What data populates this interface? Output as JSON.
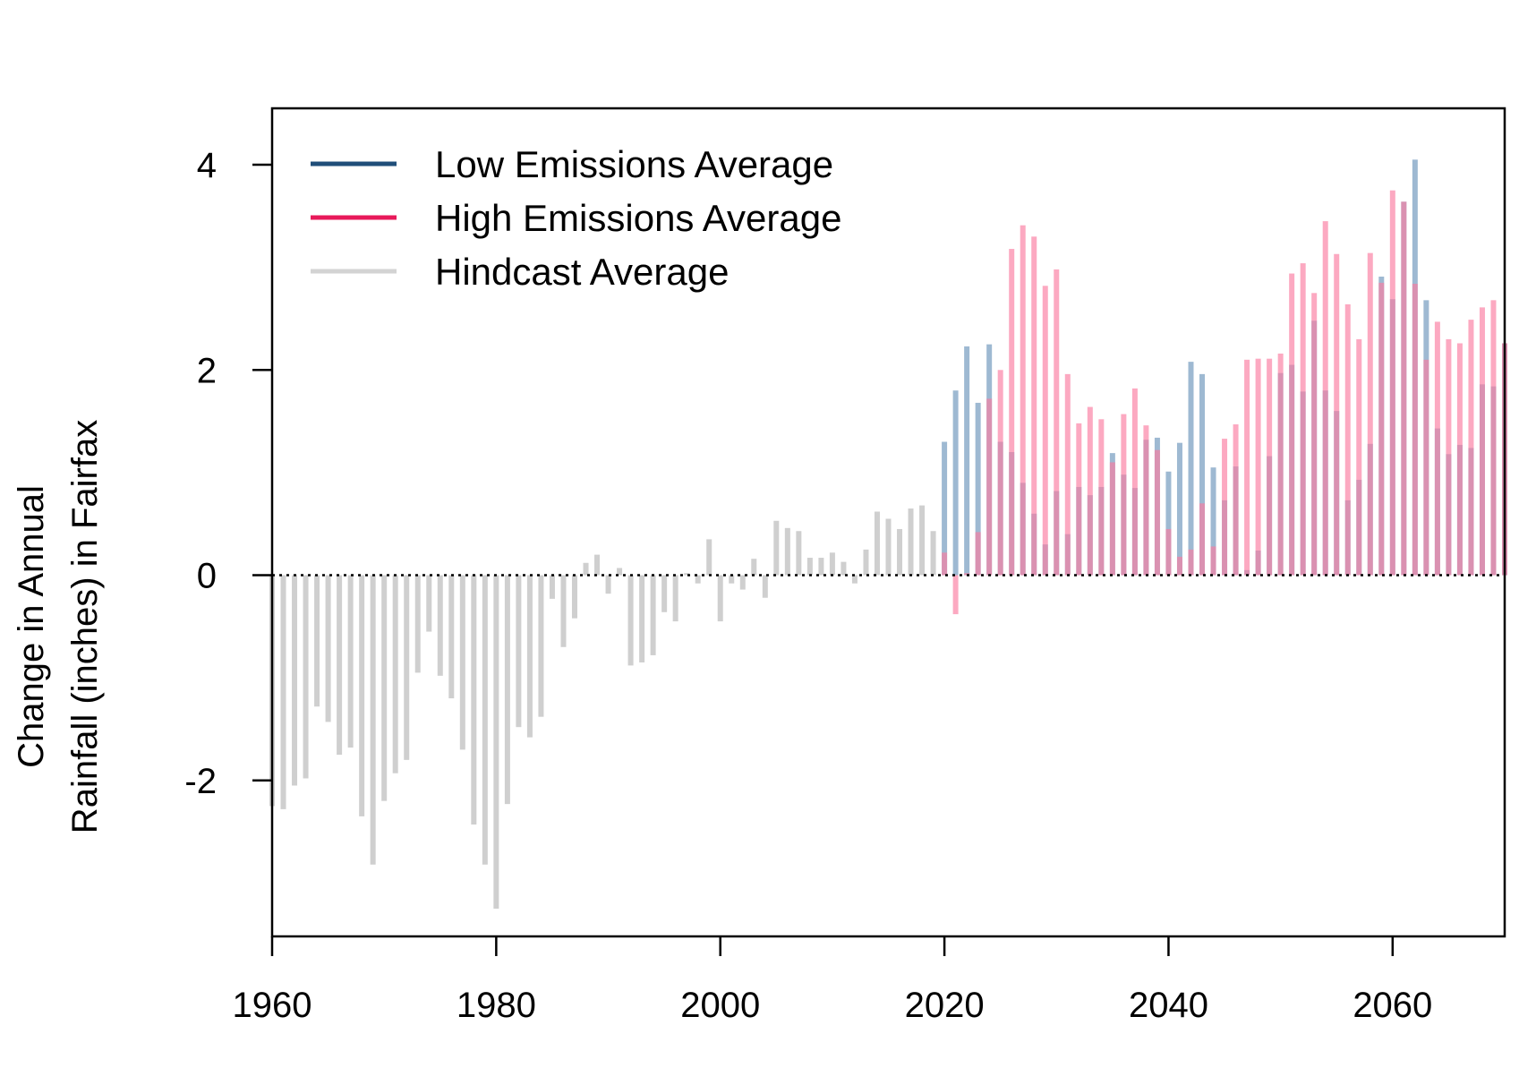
{
  "chart_data": {
    "type": "bar",
    "ylabel_lines": [
      "Change in Annual",
      "Rainfall (inches) in Fairfax"
    ],
    "xlim": [
      1960,
      2070
    ],
    "ylim": [
      -3.52,
      4.55
    ],
    "x_ticks": [
      1960,
      1980,
      2000,
      2020,
      2040,
      2060
    ],
    "y_ticks": [
      -2,
      0,
      2,
      4
    ],
    "reference_line": 0,
    "legend_position": "top-left",
    "series": [
      {
        "name": "Low Emissions Average",
        "color": "#1f4e79",
        "bar_color": "rgba(134,168,199,0.8)",
        "start_year": 2020,
        "values": [
          1.3,
          1.8,
          2.23,
          1.68,
          2.25,
          1.3,
          1.2,
          0.9,
          0.6,
          0.3,
          0.82,
          0.4,
          0.86,
          0.78,
          0.86,
          1.19,
          0.98,
          0.85,
          1.32,
          1.34,
          1.01,
          1.29,
          2.08,
          1.96,
          1.05,
          0.73,
          1.06,
          0.05,
          0.24,
          1.16,
          1.97,
          2.05,
          1.79,
          2.48,
          1.8,
          1.6,
          0.73,
          0.93,
          1.28,
          2.91,
          2.69,
          3.64,
          4.05,
          2.68,
          1.43,
          1.18,
          1.27,
          1.24,
          1.86,
          1.84,
          2.26
        ]
      },
      {
        "name": "High Emissions Average",
        "color": "#e8195a",
        "bar_color": "rgba(250,123,160,0.65)",
        "start_year": 2020,
        "values": [
          0.22,
          -0.38,
          0.02,
          0.42,
          1.72,
          2.0,
          3.18,
          3.41,
          3.3,
          2.82,
          2.98,
          1.96,
          1.48,
          1.64,
          1.52,
          1.1,
          1.57,
          1.82,
          1.46,
          1.22,
          0.45,
          0.18,
          0.25,
          0.7,
          0.28,
          1.33,
          1.47,
          2.1,
          2.11,
          2.11,
          2.16,
          2.94,
          3.04,
          2.75,
          3.45,
          3.13,
          2.64,
          2.3,
          3.14,
          2.85,
          3.75,
          3.64,
          2.84,
          2.1,
          2.47,
          2.3,
          2.26,
          2.49,
          2.61,
          2.68,
          2.26
        ]
      },
      {
        "name": "Hindcast Average",
        "color": "#d3d3d3",
        "bar_color": "#cfcfcf",
        "start_year": 1960,
        "values": [
          -2.25,
          -2.28,
          -2.05,
          -1.98,
          -1.28,
          -1.43,
          -1.75,
          -1.68,
          -2.35,
          -2.82,
          -2.2,
          -1.93,
          -1.8,
          -0.95,
          -0.55,
          -0.98,
          -1.2,
          -1.7,
          -2.43,
          -2.82,
          -3.25,
          -2.23,
          -1.48,
          -1.58,
          -1.38,
          -0.23,
          -0.7,
          -0.42,
          0.12,
          0.2,
          -0.18,
          0.07,
          -0.88,
          -0.85,
          -0.78,
          -0.36,
          -0.45,
          0.02,
          -0.08,
          0.35,
          -0.45,
          -0.08,
          -0.14,
          0.16,
          -0.22,
          0.53,
          0.46,
          0.43,
          0.17,
          0.17,
          0.22,
          0.13,
          -0.08,
          0.25,
          0.62,
          0.55,
          0.45,
          0.65,
          0.68,
          0.43
        ]
      }
    ]
  }
}
